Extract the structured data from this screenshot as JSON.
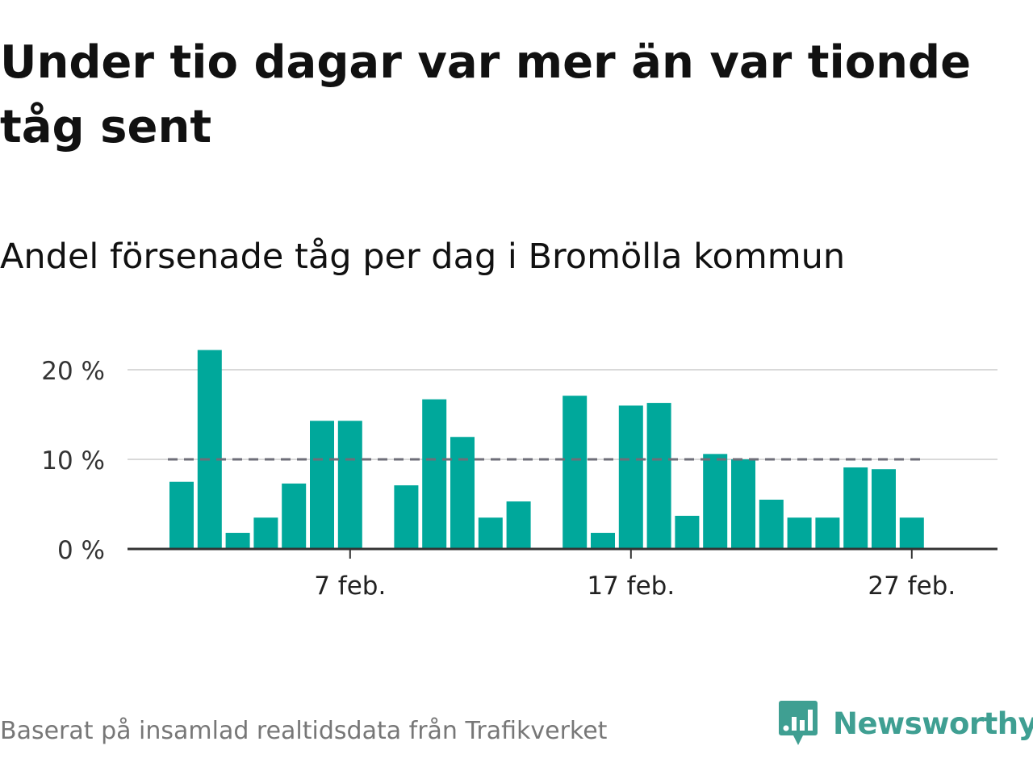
{
  "title": "Under tio dagar var mer än var tionde tåg sent",
  "subtitle": "Andel försenade tåg per dag i Bromölla kommun",
  "source": "Baserat på insamlad realtidsdata från Trafikverket",
  "brand": {
    "name": "Newsworthy",
    "icon": "newsworthy-logo-icon",
    "color": "#3f9f92"
  },
  "chart_data": {
    "type": "bar",
    "x": [
      "2024-02-01",
      "2024-02-02",
      "2024-02-03",
      "2024-02-04",
      "2024-02-05",
      "2024-02-06",
      "2024-02-07",
      "2024-02-08",
      "2024-02-09",
      "2024-02-10",
      "2024-02-11",
      "2024-02-12",
      "2024-02-13",
      "2024-02-14",
      "2024-02-15",
      "2024-02-16",
      "2024-02-17",
      "2024-02-18",
      "2024-02-19",
      "2024-02-20",
      "2024-02-21",
      "2024-02-22",
      "2024-02-23",
      "2024-02-24",
      "2024-02-25",
      "2024-02-26",
      "2024-02-27",
      "2024-02-28",
      "2024-02-29"
    ],
    "values": [
      7.5,
      22.2,
      1.8,
      3.5,
      7.3,
      14.3,
      14.3,
      0,
      7.1,
      16.7,
      12.5,
      3.5,
      5.3,
      0,
      17.1,
      1.8,
      16.0,
      16.3,
      3.7,
      10.6,
      10.0,
      5.5,
      3.5,
      3.5,
      9.1,
      8.9,
      3.5,
      null,
      null
    ],
    "ylim": [
      0,
      22.5
    ],
    "yticks": [
      0,
      10,
      20
    ],
    "ytick_labels": [
      "0 %",
      "10 %",
      "20 %"
    ],
    "xticks": [
      "2024-02-07",
      "2024-02-17",
      "2024-02-27"
    ],
    "xtick_labels": [
      "7 feb.",
      "17 feb.",
      "27 feb."
    ],
    "reference_line": 10,
    "grid": true,
    "bar_color": "#00a89b",
    "reference_color": "#6e6e78",
    "xlabel": "",
    "ylabel": ""
  }
}
